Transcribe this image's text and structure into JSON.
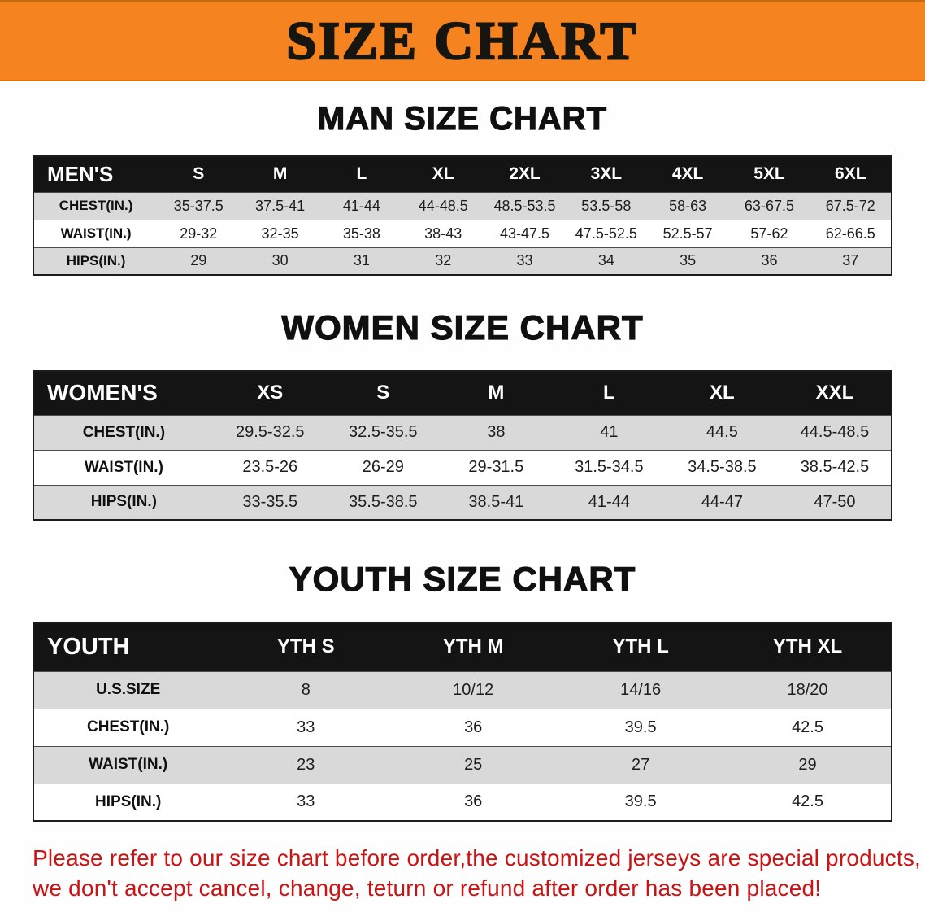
{
  "banner": {
    "title": "SIZE CHART"
  },
  "colors": {
    "banner_orange": "#f5831f",
    "table_header_black": "#141414",
    "row_gray": "#d9d9d9",
    "disclaimer_red": "#cc1212"
  },
  "sections": [
    {
      "heading": "MAN SIZE CHART",
      "table": {
        "header": [
          "MEN'S",
          "S",
          "M",
          "L",
          "XL",
          "2XL",
          "3XL",
          "4XL",
          "5XL",
          "6XL"
        ],
        "rows": [
          [
            "CHEST(IN.)",
            "35-37.5",
            "37.5-41",
            "41-44",
            "44-48.5",
            "48.5-53.5",
            "53.5-58",
            "58-63",
            "63-67.5",
            "67.5-72"
          ],
          [
            "WAIST(IN.)",
            "29-32",
            "32-35",
            "35-38",
            "38-43",
            "43-47.5",
            "47.5-52.5",
            "52.5-57",
            "57-62",
            "62-66.5"
          ],
          [
            "HIPS(IN.)",
            "29",
            "30",
            "31",
            "32",
            "33",
            "34",
            "35",
            "36",
            "37"
          ]
        ]
      }
    },
    {
      "heading": "WOMEN SIZE CHART",
      "table": {
        "header": [
          "WOMEN'S",
          "XS",
          "S",
          "M",
          "L",
          "XL",
          "XXL"
        ],
        "rows": [
          [
            "CHEST(IN.)",
            "29.5-32.5",
            "32.5-35.5",
            "38",
            "41",
            "44.5",
            "44.5-48.5"
          ],
          [
            "WAIST(IN.)",
            "23.5-26",
            "26-29",
            "29-31.5",
            "31.5-34.5",
            "34.5-38.5",
            "38.5-42.5"
          ],
          [
            "HIPS(IN.)",
            "33-35.5",
            "35.5-38.5",
            "38.5-41",
            "41-44",
            "44-47",
            "47-50"
          ]
        ]
      }
    },
    {
      "heading": "YOUTH SIZE CHART",
      "table": {
        "header": [
          "YOUTH",
          "YTH S",
          "YTH M",
          "YTH L",
          "YTH XL"
        ],
        "rows": [
          [
            "U.S.SIZE",
            "8",
            "10/12",
            "14/16",
            "18/20"
          ],
          [
            "CHEST(IN.)",
            "33",
            "36",
            "39.5",
            "42.5"
          ],
          [
            "WAIST(IN.)",
            "23",
            "25",
            "27",
            "29"
          ],
          [
            "HIPS(IN.)",
            "33",
            "36",
            "39.5",
            "42.5"
          ]
        ]
      }
    }
  ],
  "disclaimer": {
    "line1": "Please refer to our size chart before order,the customized jerseys are special products,",
    "line2": "we don't accept cancel, change, teturn or refund after order has been placed!"
  }
}
